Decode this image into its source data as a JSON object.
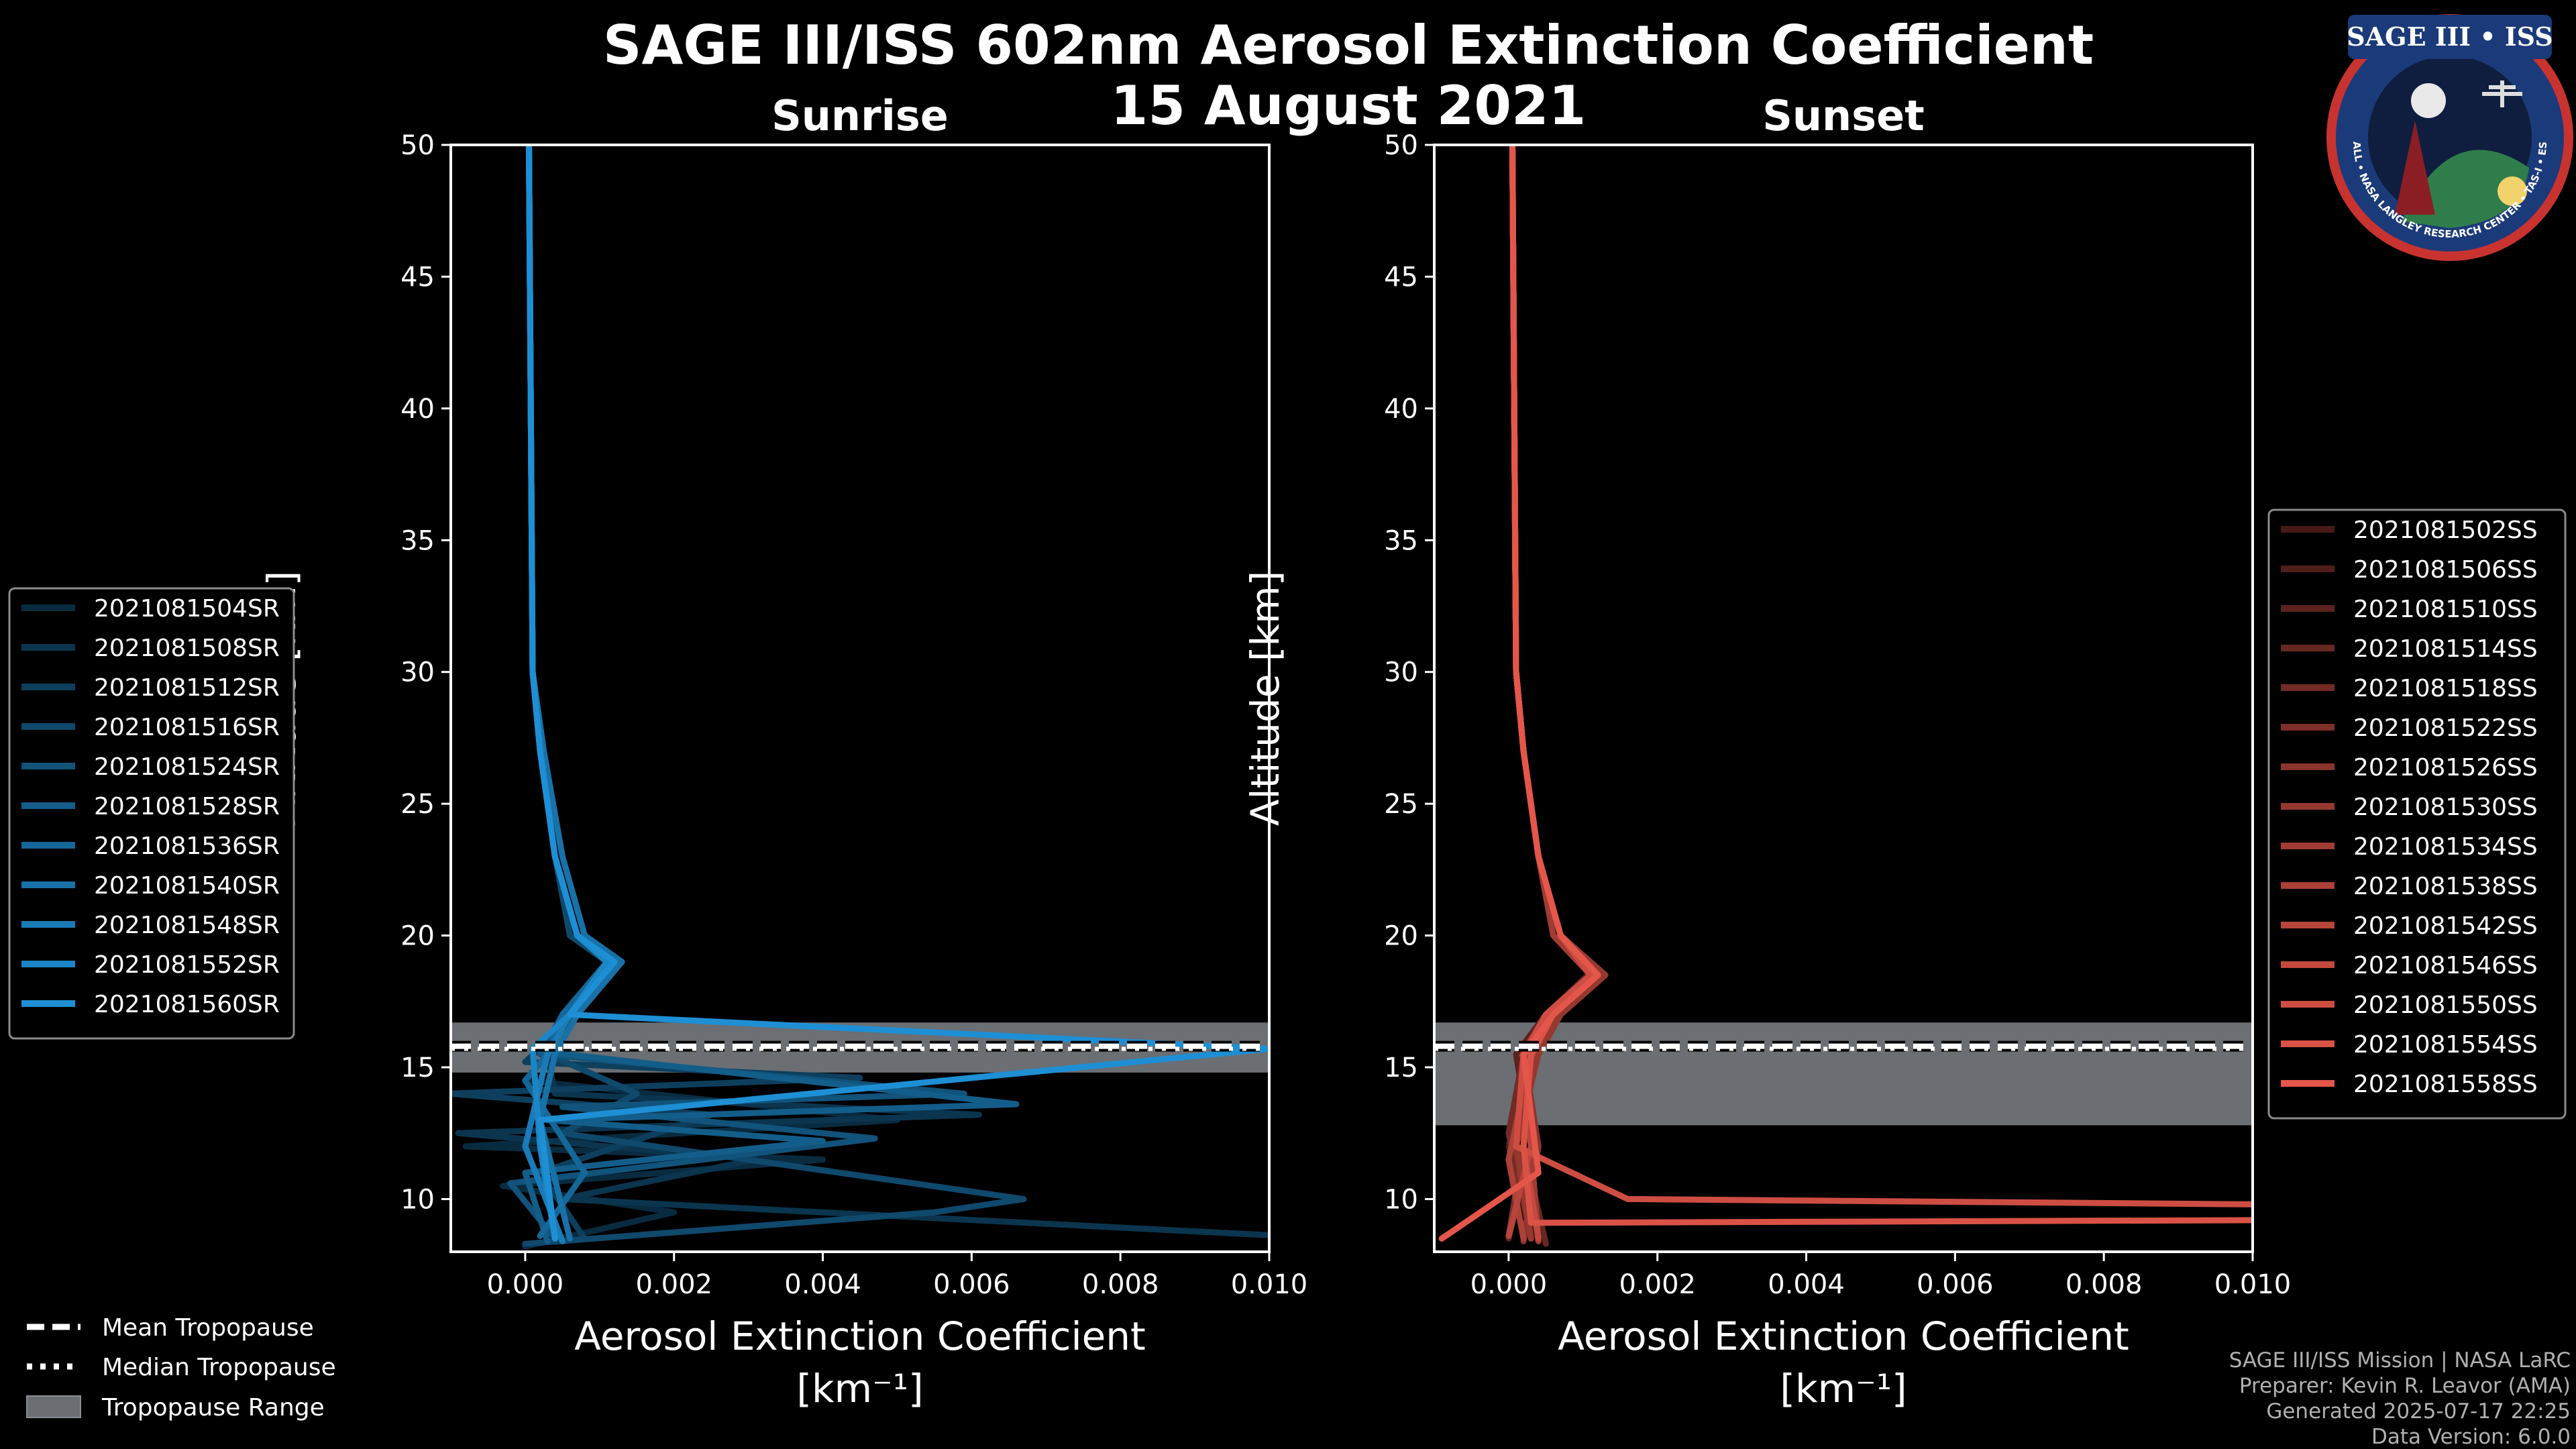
{
  "title": "SAGE III/ISS 602nm Aerosol Extinction Coefficient",
  "date": "15 August 2021",
  "credits": [
    "SAGE III/ISS Mission | NASA LaRC",
    "Preparer: Kevin R. Leavor (AMA)",
    "Generated 2025-07-17 22:25",
    "Data Version: 6.0.0"
  ],
  "badge": {
    "title": "SAGE III • ISS",
    "ring_text": "BALL • NASA LANGLEY RESEARCH CENTER • TAS-I • ESA"
  },
  "colors": {
    "sunrise": "#1e8fd4",
    "sunset": "#e5564a",
    "tropo_band": "#6b6e73"
  },
  "chart_data": [
    {
      "type": "line",
      "title": "Sunrise",
      "xlabel": "Aerosol Extinction Coefficient",
      "xunit": "[km⁻¹]",
      "ylabel": "Altitude [km]",
      "xlim": [
        -0.001,
        0.01
      ],
      "ylim": [
        8,
        50
      ],
      "xticks": [
        0.0,
        0.002,
        0.004,
        0.006,
        0.008,
        0.01
      ],
      "xtick_labels": [
        "0.000",
        "0.002",
        "0.004",
        "0.006",
        "0.008",
        "0.010"
      ],
      "yticks": [
        10,
        15,
        20,
        25,
        30,
        35,
        40,
        45,
        50
      ],
      "tropopause": {
        "mean": 15.8,
        "median": 15.7,
        "range": [
          14.8,
          16.7
        ]
      },
      "series": [
        {
          "name": "2021081504SR",
          "x": [
            5e-05,
            0.0001,
            0.0002,
            0.0004,
            0.0007,
            0.0011,
            0.0005,
            0.0003,
            0.0,
            0.005,
            -0.0008,
            0.004,
            -0.0003,
            0.002,
            0.0
          ],
          "y": [
            50,
            30,
            27,
            23,
            20,
            19,
            17,
            15.5,
            14.5,
            13,
            12,
            11.5,
            10.5,
            9.5,
            8.2
          ]
        },
        {
          "name": "2021081508SR",
          "x": [
            5e-05,
            0.0001,
            0.0002,
            0.0004,
            0.0007,
            0.0012,
            0.0006,
            0.0003,
            0.0004,
            0.0061,
            -0.0009,
            0.0031,
            0.0005,
            0.0102
          ],
          "y": [
            50,
            30,
            27,
            23,
            20,
            19,
            17,
            15.5,
            14,
            13.2,
            12.5,
            11.5,
            10,
            8.6
          ]
        },
        {
          "name": "2021081512SR",
          "x": [
            5e-05,
            0.0001,
            0.00025,
            0.0005,
            0.0008,
            0.0013,
            0.0007,
            0.0,
            0.0045,
            -0.001,
            0.0025,
            0.0002,
            0.0008
          ],
          "y": [
            50,
            30,
            27,
            23,
            20,
            19,
            17,
            15.2,
            14.6,
            14,
            13.2,
            11,
            8.5
          ]
        },
        {
          "name": "2021081516SR",
          "x": [
            5e-05,
            0.0001,
            0.0002,
            0.0004,
            0.0006,
            0.0011,
            0.0006,
            0.0003,
            0.0015,
            0.0005,
            0.0067,
            0.0055,
            0.0
          ],
          "y": [
            50,
            30,
            27,
            23,
            20,
            19,
            17,
            15.5,
            14,
            12.5,
            10,
            9.5,
            8.3
          ]
        },
        {
          "name": "2021081524SR",
          "x": [
            5e-05,
            0.0001,
            0.0002,
            0.0004,
            0.0007,
            0.0011,
            0.0005,
            0.0002,
            0.0059,
            0.0005,
            0.0047,
            -0.0002,
            0.0004
          ],
          "y": [
            50,
            30,
            27,
            23,
            20,
            19,
            17,
            15.5,
            14,
            13.5,
            12.3,
            10.6,
            8.5
          ]
        },
        {
          "name": "2021081528SR",
          "x": [
            5e-05,
            0.0001,
            0.0002,
            0.0004,
            0.0007,
            0.0012,
            0.0006,
            0.0002,
            0.0066,
            0.0003,
            0.004,
            0.0,
            0.0003
          ],
          "y": [
            50,
            30,
            27,
            23,
            20,
            19,
            17,
            15.6,
            13.6,
            13,
            12.2,
            11,
            8.4
          ]
        },
        {
          "name": "2021081536SR",
          "x": [
            5e-05,
            0.0001,
            0.0002,
            0.0004,
            0.0007,
            0.0011,
            0.0005,
            0.0003,
            0.0,
            0.0008,
            0.0002
          ],
          "y": [
            50,
            30,
            27,
            23,
            20,
            19,
            17,
            15.5,
            14.5,
            11,
            8.6
          ]
        },
        {
          "name": "2021081540SR",
          "x": [
            5e-05,
            0.0001,
            0.00025,
            0.0005,
            0.0008,
            0.0013,
            0.0007,
            0.0004,
            0.0002,
            0.0006
          ],
          "y": [
            50,
            30,
            27,
            23,
            20,
            19,
            17,
            15.5,
            13,
            8.5
          ]
        },
        {
          "name": "2021081548SR",
          "x": [
            5e-05,
            0.0001,
            0.0002,
            0.0004,
            0.0007,
            0.0012,
            0.0006,
            0.0003,
            0.0,
            0.0005
          ],
          "y": [
            50,
            30,
            27,
            23,
            20,
            19,
            17,
            15.5,
            12,
            8.4
          ]
        },
        {
          "name": "2021081552SR",
          "x": [
            5e-05,
            0.0001,
            0.0002,
            0.0004,
            0.0007,
            0.0011,
            0.0006,
            0.0001,
            0.0002,
            0.0004
          ],
          "y": [
            50,
            30,
            27,
            23,
            20,
            19,
            17,
            15.7,
            12,
            8.5
          ]
        },
        {
          "name": "2021081560SR",
          "x": [
            5e-05,
            0.0001,
            0.0002,
            0.0004,
            0.0007,
            0.0012,
            0.0006,
            0.01,
            0.0002,
            0.0004
          ],
          "y": [
            50,
            30,
            27,
            23,
            20,
            19,
            17,
            15.7,
            13,
            8.5
          ]
        }
      ]
    },
    {
      "type": "line",
      "title": "Sunset",
      "xlabel": "Aerosol Extinction Coefficient",
      "xunit": "[km⁻¹]",
      "ylabel": "Altitude [km]",
      "xlim": [
        -0.001,
        0.01
      ],
      "ylim": [
        8,
        50
      ],
      "xticks": [
        0.0,
        0.002,
        0.004,
        0.006,
        0.008,
        0.01
      ],
      "xtick_labels": [
        "0.000",
        "0.002",
        "0.004",
        "0.006",
        "0.008",
        "0.010"
      ],
      "yticks": [
        10,
        15,
        20,
        25,
        30,
        35,
        40,
        45,
        50
      ],
      "tropopause": {
        "mean": 15.8,
        "median": 15.7,
        "range": [
          12.8,
          16.7
        ]
      },
      "series": [
        {
          "name": "2021081502SS",
          "x": [
            5e-05,
            0.0001,
            0.0002,
            0.0004,
            0.0007,
            0.0011,
            0.0006,
            0.0002,
            0.0004,
            0.0002
          ],
          "y": [
            50,
            30,
            27,
            23,
            20,
            18.5,
            17,
            15.5,
            12,
            8.5
          ]
        },
        {
          "name": "2021081506SS",
          "x": [
            5e-05,
            0.0001,
            0.0002,
            0.0004,
            0.0007,
            0.0012,
            0.0006,
            0.0003,
            0.0,
            0.0004
          ],
          "y": [
            50,
            30,
            27,
            23,
            20,
            18.5,
            17,
            15.5,
            12,
            8.4
          ]
        },
        {
          "name": "2021081510SS",
          "x": [
            5e-05,
            0.0001,
            0.0002,
            0.0004,
            0.0006,
            0.0011,
            0.0005,
            0.0001,
            0.0003,
            0.0
          ],
          "y": [
            50,
            30,
            27,
            23,
            20,
            18.6,
            17,
            15.5,
            12,
            8.5
          ]
        },
        {
          "name": "2021081514SS",
          "x": [
            5e-05,
            0.0001,
            0.0002,
            0.0004,
            0.0007,
            0.0012,
            0.0007,
            0.0003,
            0.0002,
            0.0005
          ],
          "y": [
            50,
            30,
            27,
            23,
            20,
            18.5,
            17,
            15.4,
            12,
            8.3
          ]
        },
        {
          "name": "2021081518SS",
          "x": [
            5e-05,
            0.0001,
            0.0002,
            0.0004,
            0.0007,
            0.0011,
            0.0006,
            0.0002,
            0.0,
            0.0003
          ],
          "y": [
            50,
            30,
            27,
            23,
            20,
            18.5,
            17,
            15.5,
            12.5,
            8.5
          ]
        },
        {
          "name": "2021081522SS",
          "x": [
            5e-05,
            0.0001,
            0.0002,
            0.0004,
            0.0007,
            0.0012,
            0.0006,
            0.0003,
            0.0002,
            0.0
          ],
          "y": [
            50,
            30,
            27,
            23,
            20,
            18.4,
            17,
            15.5,
            12,
            8.6
          ]
        },
        {
          "name": "2021081526SS",
          "x": [
            5e-05,
            0.0001,
            0.0002,
            0.0004,
            0.0007,
            0.0011,
            0.0005,
            0.0002,
            0.0004,
            0.0002
          ],
          "y": [
            50,
            30,
            27,
            23,
            20,
            18.5,
            17,
            15.6,
            12,
            8.4
          ]
        },
        {
          "name": "2021081530SS",
          "x": [
            5e-05,
            0.0001,
            0.0002,
            0.0004,
            0.0007,
            0.0013,
            0.0007,
            0.0004,
            0.0001,
            0.0003
          ],
          "y": [
            50,
            30,
            27,
            23,
            20,
            18.5,
            17,
            15.5,
            12,
            8.5
          ]
        },
        {
          "name": "2021081534SS",
          "x": [
            5e-05,
            0.0001,
            0.0002,
            0.0004,
            0.0006,
            0.0011,
            0.0006,
            0.0002,
            0.0003,
            0.0004
          ],
          "y": [
            50,
            30,
            27,
            23,
            20,
            18.5,
            17,
            15.5,
            12,
            8.4
          ]
        },
        {
          "name": "2021081538SS",
          "x": [
            5e-05,
            0.0001,
            0.0002,
            0.0004,
            0.0007,
            0.0012,
            0.0006,
            0.0003,
            0.0,
            0.0002
          ],
          "y": [
            50,
            30,
            27,
            23,
            20,
            18.5,
            17,
            15.5,
            11.5,
            8.5
          ]
        },
        {
          "name": "2021081542SS",
          "x": [
            5e-05,
            0.0001,
            0.0002,
            0.0004,
            0.0007,
            0.0011,
            0.0006,
            0.0002,
            0.0003,
            0.0
          ],
          "y": [
            50,
            30,
            27,
            23,
            20,
            18.5,
            17,
            15.5,
            12,
            8.6
          ]
        },
        {
          "name": "2021081546SS",
          "x": [
            5e-05,
            0.0001,
            0.0002,
            0.0004,
            0.0007,
            0.0012,
            0.0006,
            0.0003,
            0.0002,
            0.0004
          ],
          "y": [
            50,
            30,
            27,
            23,
            20,
            18.5,
            17,
            15.4,
            12,
            8.5
          ]
        },
        {
          "name": "2021081550SS",
          "x": [
            5e-05,
            0.0001,
            0.0002,
            0.0004,
            0.0007,
            0.0011,
            0.0005,
            0.0002,
            0.0001,
            0.0016,
            0.01
          ],
          "y": [
            50,
            30,
            27,
            23,
            20,
            18.5,
            17,
            15.5,
            12,
            10,
            9.8
          ]
        },
        {
          "name": "2021081554SS",
          "x": [
            5e-05,
            0.0001,
            0.0002,
            0.0004,
            0.0007,
            0.0012,
            0.0006,
            0.0003,
            0.0002,
            0.0003,
            0.01
          ],
          "y": [
            50,
            30,
            27,
            23,
            20,
            18.5,
            17,
            15.5,
            12,
            9.1,
            9.2
          ]
        },
        {
          "name": "2021081558SS",
          "x": [
            5e-05,
            0.0001,
            0.0002,
            0.0004,
            0.0007,
            0.0012,
            0.0006,
            0.0002,
            0.0004,
            -0.0009
          ],
          "y": [
            50,
            30,
            27,
            23,
            20,
            18.5,
            17,
            15.5,
            11,
            8.5
          ]
        }
      ]
    }
  ],
  "shared_legend": {
    "mean": "Mean Tropopause",
    "median": "Median Tropopause",
    "range": "Tropopause Range"
  }
}
